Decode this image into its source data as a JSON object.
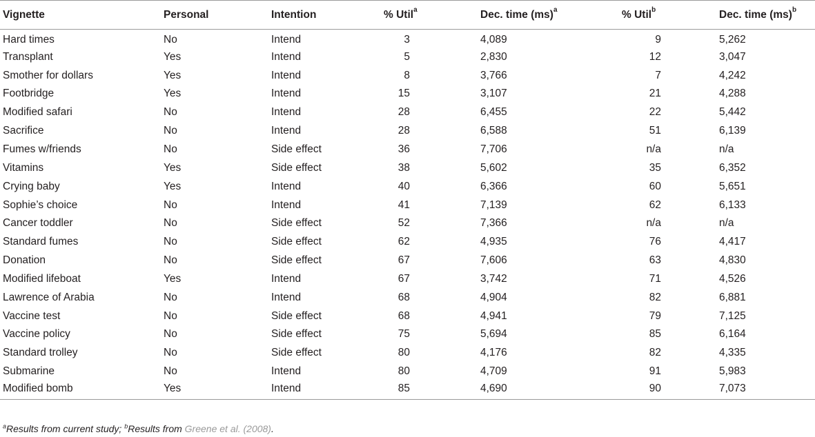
{
  "table": {
    "headers": [
      {
        "label": "Vignette",
        "sup": ""
      },
      {
        "label": "Personal",
        "sup": ""
      },
      {
        "label": "Intention",
        "sup": ""
      },
      {
        "label": "% Util",
        "sup": "a"
      },
      {
        "label": "Dec. time (ms)",
        "sup": "a"
      },
      {
        "label": "% Util",
        "sup": "b"
      },
      {
        "label": "Dec. time (ms)",
        "sup": "b"
      }
    ],
    "rows": [
      [
        "Hard times",
        "No",
        "Intend",
        "3",
        "4,089",
        "9",
        "5,262"
      ],
      [
        "Transplant",
        "Yes",
        "Intend",
        "5",
        "2,830",
        "12",
        "3,047"
      ],
      [
        "Smother for dollars",
        "Yes",
        "Intend",
        "8",
        "3,766",
        "7",
        "4,242"
      ],
      [
        "Footbridge",
        "Yes",
        "Intend",
        "15",
        "3,107",
        "21",
        "4,288"
      ],
      [
        "Modified safari",
        "No",
        "Intend",
        "28",
        "6,455",
        "22",
        "5,442"
      ],
      [
        "Sacrifice",
        "No",
        "Intend",
        "28",
        "6,588",
        "51",
        "6,139"
      ],
      [
        "Fumes w/friends",
        "No",
        "Side effect",
        "36",
        "7,706",
        "n/a",
        "n/a"
      ],
      [
        "Vitamins",
        "Yes",
        "Side effect",
        "38",
        "5,602",
        "35",
        "6,352"
      ],
      [
        "Crying baby",
        "Yes",
        "Intend",
        "40",
        "6,366",
        "60",
        "5,651"
      ],
      [
        "Sophie’s choice",
        "No",
        "Intend",
        "41",
        "7,139",
        "62",
        "6,133"
      ],
      [
        "Cancer toddler",
        "No",
        "Side effect",
        "52",
        "7,366",
        "n/a",
        "n/a"
      ],
      [
        "Standard fumes",
        "No",
        "Side effect",
        "62",
        "4,935",
        "76",
        "4,417"
      ],
      [
        "Donation",
        "No",
        "Side effect",
        "67",
        "7,606",
        "63",
        "4,830"
      ],
      [
        "Modified lifeboat",
        "Yes",
        "Intend",
        "67",
        "3,742",
        "71",
        "4,526"
      ],
      [
        "Lawrence of Arabia",
        "No",
        "Intend",
        "68",
        "4,904",
        "82",
        "6,881"
      ],
      [
        "Vaccine test",
        "No",
        "Side effect",
        "68",
        "4,941",
        "79",
        "7,125"
      ],
      [
        "Vaccine policy",
        "No",
        "Side effect",
        "75",
        "5,694",
        "85",
        "6,164"
      ],
      [
        "Standard trolley",
        "No",
        "Side effect",
        "80",
        "4,176",
        "82",
        "4,335"
      ],
      [
        "Submarine",
        "No",
        "Intend",
        "80",
        "4,709",
        "91",
        "5,983"
      ],
      [
        "Modified bomb",
        "Yes",
        "Intend",
        "85",
        "4,690",
        "90",
        "7,073"
      ]
    ]
  },
  "footnote": {
    "sup_a": "a",
    "text_a": "Results from current study; ",
    "sup_b": "b",
    "text_b": "Results from ",
    "citation": "Greene et al. (2008)",
    "end": "."
  }
}
